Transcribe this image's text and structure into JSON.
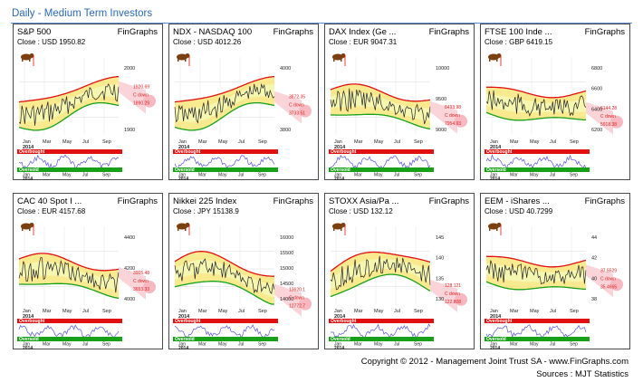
{
  "header": {
    "title": "Daily - Medium Term Investors"
  },
  "brand": "FinGraphs",
  "labels": {
    "overbought": "Overbought",
    "oversold": "Oversold",
    "months": [
      "Jan",
      "Mar",
      "May",
      "Jul",
      "Sep"
    ],
    "year": "2014"
  },
  "colors": {
    "title": "#2a6ab5",
    "band_outer": "#f8e36a",
    "band_inner": "#f5f7b0",
    "upper_line": "#e01010",
    "lower_line": "#18a018",
    "price": "#222222",
    "oscillator": "#5555dd",
    "overbought_bar": "#e01010",
    "oversold_bar": "#18a018",
    "forecast": "#f7b8bf"
  },
  "panels": [
    {
      "name": "S&P 500",
      "close": "Close : USD 1950.82",
      "ticks": [
        "2000",
        "1900"
      ],
      "targets": [
        "1920.69",
        "C down",
        "1890.29"
      ]
    },
    {
      "name": "NDX - NASDAQ 100",
      "close": "Close : USD 4012.26",
      "ticks": [
        "4000",
        "3800"
      ],
      "targets": [
        "3872.35",
        "C down",
        "3733.51"
      ]
    },
    {
      "name": "DAX Index (Ge ...",
      "close": "Close : EUR 9047.31",
      "ticks": [
        "10000",
        "9500",
        "9000"
      ],
      "targets": [
        "8493.98",
        "C down",
        "7954.93"
      ]
    },
    {
      "name": "FTSE 100 Inde ...",
      "close": "Close : GBP 6419.15",
      "ticks": [
        "6800",
        "6600",
        "6400",
        "6200"
      ],
      "targets": [
        "6144.28",
        "C down",
        "5918.38"
      ]
    },
    {
      "name": "CAC 40 Spot I ...",
      "close": "Close : EUR 4157.68",
      "ticks": [
        "4400",
        "4200",
        "4000"
      ],
      "targets": [
        "3905.48",
        "C down",
        "3653.33"
      ]
    },
    {
      "name": "Nikkei 225 Index",
      "close": "Close : JPY 15138.9",
      "ticks": [
        "16000",
        "15500",
        "15000",
        "14500",
        "14000"
      ],
      "targets": [
        "13620.1",
        "C down",
        "12772.7"
      ]
    },
    {
      "name": "STOXX Asia/Pa ...",
      "close": "Close : USD 132.12",
      "ticks": [
        "145",
        "140",
        "135",
        "130"
      ],
      "targets": [
        "128.121",
        "C down",
        "122.808"
      ]
    },
    {
      "name": "EEM - iShares ...",
      "close": "Close : USD 40.7299",
      "ticks": [
        "44",
        "42",
        "40",
        "38"
      ],
      "targets": [
        "37.5529",
        "C down",
        "35.4665"
      ]
    }
  ],
  "footer": {
    "copyright": "Copyright © 2012 - Management Joint Trust SA - www.FinGraphs.com",
    "sources": "Sources : MJT Statistics"
  }
}
